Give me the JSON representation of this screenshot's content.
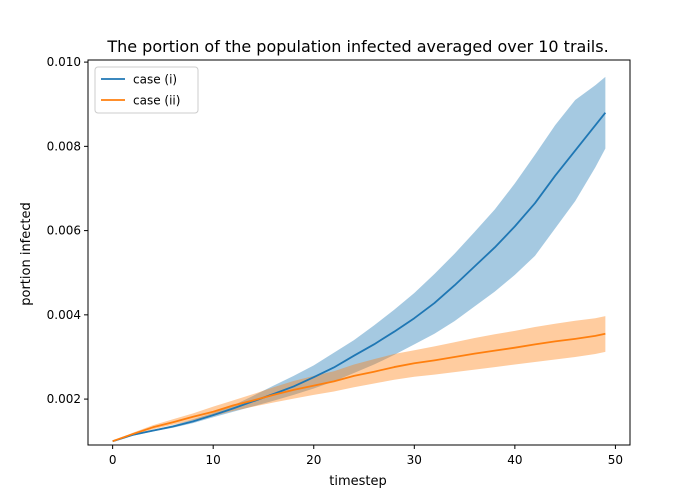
{
  "chart_data": {
    "type": "line",
    "title": "The portion of the population infected averaged over 10 trails.",
    "xlabel": "timestep",
    "ylabel": "portion infected",
    "xlim": [
      -2.45,
      51.45
    ],
    "ylim": [
      0.00091,
      0.01005
    ],
    "xticks": [
      0,
      10,
      20,
      30,
      40,
      50
    ],
    "yticks": [
      0.002,
      0.004,
      0.006,
      0.008,
      0.01
    ],
    "ytick_labels": [
      "0.002",
      "0.004",
      "0.006",
      "0.008",
      "0.010"
    ],
    "grid": false,
    "legend_position": "upper left",
    "x": [
      0,
      2,
      4,
      6,
      8,
      10,
      12,
      14,
      16,
      18,
      20,
      22,
      24,
      26,
      28,
      30,
      32,
      34,
      36,
      38,
      40,
      42,
      44,
      46,
      48,
      49
    ],
    "series": [
      {
        "name": "case (i)",
        "color": "#1f77b4",
        "band_color": "#1f77b4",
        "mean": [
          0.001,
          0.00115,
          0.00125,
          0.00135,
          0.00147,
          0.00162,
          0.00178,
          0.00195,
          0.00212,
          0.0023,
          0.00252,
          0.00275,
          0.00303,
          0.0033,
          0.0036,
          0.00392,
          0.00428,
          0.0047,
          0.00515,
          0.0056,
          0.0061,
          0.00665,
          0.0073,
          0.0079,
          0.0085,
          0.0088
        ],
        "lower": [
          0.001,
          0.00113,
          0.00123,
          0.00132,
          0.00143,
          0.00157,
          0.0017,
          0.00183,
          0.00196,
          0.0021,
          0.00225,
          0.00242,
          0.00262,
          0.00282,
          0.00305,
          0.0033,
          0.00355,
          0.00385,
          0.0042,
          0.00455,
          0.00495,
          0.0054,
          0.00605,
          0.0067,
          0.0075,
          0.00795
        ],
        "upper": [
          0.001,
          0.00117,
          0.00127,
          0.00138,
          0.00152,
          0.00167,
          0.00185,
          0.00208,
          0.00232,
          0.00255,
          0.0028,
          0.0031,
          0.0034,
          0.00375,
          0.00412,
          0.00452,
          0.00497,
          0.00545,
          0.00597,
          0.0065,
          0.00712,
          0.0078,
          0.0085,
          0.0091,
          0.00945,
          0.00965
        ]
      },
      {
        "name": "case (ii)",
        "color": "#ff7f0e",
        "band_color": "#ff7f0e",
        "mean": [
          0.001,
          0.00117,
          0.00133,
          0.00145,
          0.00158,
          0.0017,
          0.00185,
          0.00197,
          0.0021,
          0.00222,
          0.00232,
          0.00242,
          0.00255,
          0.00265,
          0.00276,
          0.00285,
          0.00292,
          0.003,
          0.00308,
          0.00315,
          0.00322,
          0.0033,
          0.00337,
          0.00343,
          0.0035,
          0.00355
        ],
        "lower": [
          0.001,
          0.00114,
          0.00128,
          0.00139,
          0.0015,
          0.0016,
          0.00172,
          0.00182,
          0.00192,
          0.00201,
          0.0021,
          0.00218,
          0.00228,
          0.00237,
          0.00246,
          0.00253,
          0.00258,
          0.00264,
          0.0027,
          0.00276,
          0.00282,
          0.00288,
          0.00294,
          0.003,
          0.00307,
          0.00312
        ],
        "upper": [
          0.001,
          0.0012,
          0.00138,
          0.00152,
          0.00166,
          0.00182,
          0.00197,
          0.00212,
          0.00228,
          0.00243,
          0.00255,
          0.00266,
          0.00282,
          0.00295,
          0.00307,
          0.00316,
          0.00325,
          0.00335,
          0.00345,
          0.00354,
          0.00362,
          0.00371,
          0.00379,
          0.00386,
          0.00392,
          0.00397
        ]
      }
    ]
  }
}
